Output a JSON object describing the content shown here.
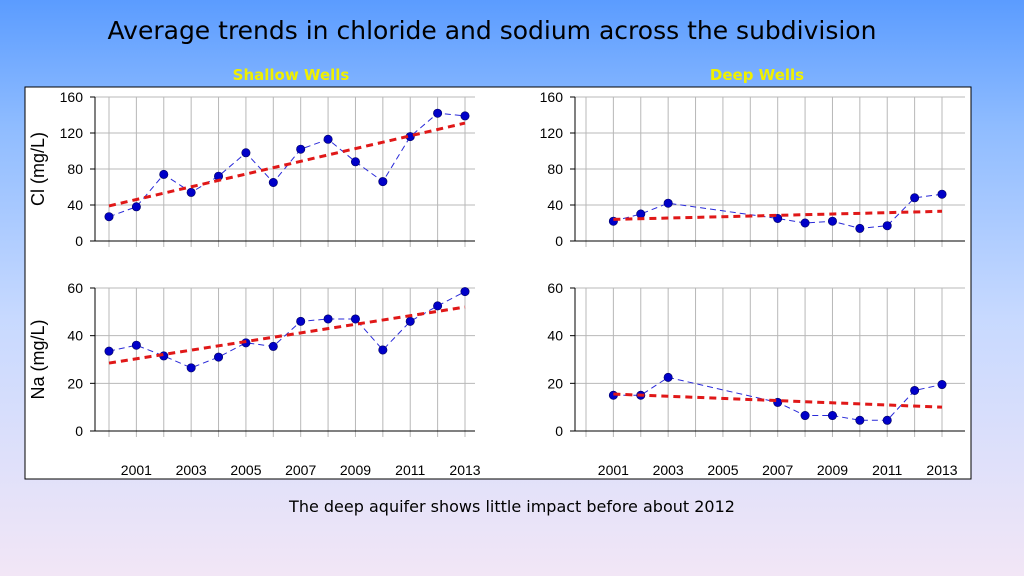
{
  "slide": {
    "title": "Average trends in chloride and sodium across the subdivision",
    "footer": "The deep aquifer shows little impact before about 2012"
  },
  "chart_data": [
    {
      "type": "line",
      "panel": "shallow-cl",
      "title": "Shallow Wells",
      "ylabel": "Cl (mg/L)",
      "xlim": [
        2000,
        2013
      ],
      "ylim": [
        0,
        160
      ],
      "yticks": [
        0,
        40,
        80,
        120,
        160
      ],
      "series": [
        {
          "kind": "observed",
          "x": [
            2000,
            2001,
            2002,
            2003,
            2004,
            2005,
            2006,
            2007,
            2008,
            2009,
            2010,
            2011,
            2012,
            2013
          ],
          "values": [
            27,
            38,
            74,
            54,
            72,
            98,
            65,
            102,
            113,
            88,
            66,
            116,
            142,
            139
          ]
        },
        {
          "kind": "trend",
          "x": [
            2000,
            2013
          ],
          "values": [
            39,
            131
          ]
        }
      ]
    },
    {
      "type": "line",
      "panel": "deep-cl",
      "title": "Deep Wells",
      "ylabel": "",
      "xlim": [
        2000,
        2013
      ],
      "ylim": [
        0,
        160
      ],
      "yticks": [
        0,
        40,
        80,
        120,
        160
      ],
      "series": [
        {
          "kind": "observed",
          "x": [
            2001,
            2002,
            2003,
            2007,
            2008,
            2009,
            2010,
            2011,
            2012,
            2013
          ],
          "values": [
            22,
            30,
            42,
            25,
            20,
            22,
            14,
            17,
            48,
            52
          ]
        },
        {
          "kind": "trend",
          "x": [
            2001,
            2013
          ],
          "values": [
            24,
            33
          ]
        }
      ]
    },
    {
      "type": "line",
      "panel": "shallow-na",
      "ylabel": "Na (mg/L)",
      "xlim": [
        2000,
        2013
      ],
      "ylim": [
        0,
        60
      ],
      "yticks": [
        0,
        20,
        40,
        60
      ],
      "xticklabels": [
        "2001",
        "2003",
        "2005",
        "2007",
        "2009",
        "2011",
        "2013"
      ],
      "series": [
        {
          "kind": "observed",
          "x": [
            2000,
            2001,
            2002,
            2003,
            2004,
            2005,
            2006,
            2007,
            2008,
            2009,
            2010,
            2011,
            2012,
            2013
          ],
          "values": [
            33.5,
            36,
            31.5,
            26.5,
            31,
            37,
            35.5,
            46,
            47,
            47,
            34,
            46,
            52.5,
            58.5
          ]
        },
        {
          "kind": "trend",
          "x": [
            2000,
            2013
          ],
          "values": [
            28.5,
            52
          ]
        }
      ]
    },
    {
      "type": "line",
      "panel": "deep-na",
      "ylabel": "",
      "xlim": [
        2000,
        2013
      ],
      "ylim": [
        0,
        60
      ],
      "yticks": [
        0,
        20,
        40,
        60
      ],
      "xticklabels": [
        "2001",
        "2003",
        "2005",
        "2007",
        "2009",
        "2011",
        "2013"
      ],
      "series": [
        {
          "kind": "observed",
          "x": [
            2001,
            2002,
            2003,
            2007,
            2008,
            2009,
            2010,
            2011,
            2012,
            2013
          ],
          "values": [
            15,
            15,
            22.5,
            12,
            6.5,
            6.5,
            4.5,
            4.5,
            17,
            19.5
          ]
        },
        {
          "kind": "trend",
          "x": [
            2001,
            2013
          ],
          "values": [
            15.5,
            10
          ]
        }
      ]
    }
  ],
  "colors": {
    "title_yellow": "#f0f000",
    "observed_line": "#2a2ad8",
    "marker": "#0000c8",
    "trend": "#e01818",
    "grid": "#b8b8b8"
  }
}
